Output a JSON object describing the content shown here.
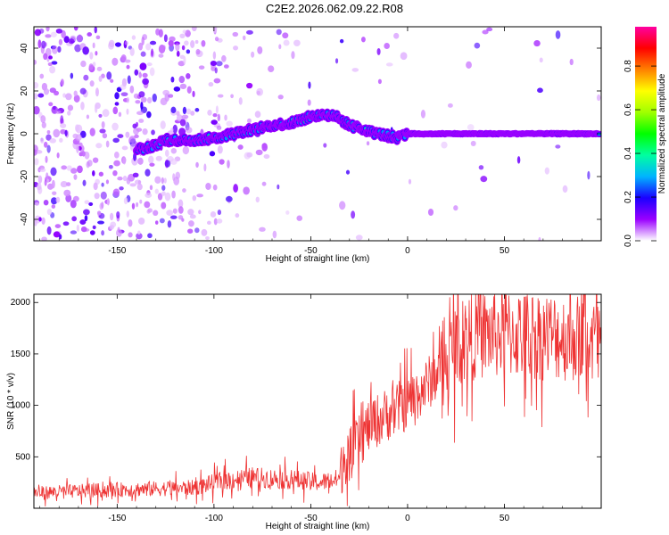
{
  "page_title": "C2E2.2026.062.09.22.R08",
  "chart_data": [
    {
      "type": "heatmap",
      "title": "C2E2.2026.062.09.22.R08",
      "xlabel": "Height of straight line (km)",
      "ylabel": "Frequency (Hz)",
      "xlim": [
        -193,
        100
      ],
      "ylim": [
        -50,
        50
      ],
      "x_ticks": [
        -150,
        -100,
        -50,
        0,
        50
      ],
      "y_ticks": [
        -40,
        -20,
        0,
        20,
        40
      ],
      "colorbar": {
        "label": "Normalized spectral amplitude",
        "range": [
          0,
          0.98
        ],
        "ticks": [
          0.0,
          0.2,
          0.4,
          0.6,
          0.8
        ],
        "stops": [
          "#ffffff",
          "#9a00ff",
          "#1a00ff",
          "#00b4ff",
          "#00ffa0",
          "#00ff00",
          "#a0ff00",
          "#ffff00",
          "#ff8000",
          "#ff0000",
          "#ff00a0"
        ]
      },
      "ridge": {
        "x": [
          -135,
          -125,
          -110,
          -100,
          -90,
          -80,
          -70,
          -60,
          -50,
          -42,
          -37,
          -30,
          -20,
          -10,
          -5,
          0,
          10,
          20,
          30,
          50,
          70,
          100
        ],
        "frequency": [
          -7,
          -3,
          -3,
          -2,
          0,
          2,
          4,
          5,
          8,
          9,
          8,
          4,
          1,
          -1,
          -2,
          0,
          0,
          0,
          0,
          0,
          0,
          0
        ]
      }
    },
    {
      "type": "line",
      "xlabel": "Height of straight line (km)",
      "ylabel": "SNR (10 * v/v)",
      "xlim": [
        -193,
        100
      ],
      "ylim": [
        0,
        2080
      ],
      "x_ticks": [
        -150,
        -100,
        -50,
        0,
        50
      ],
      "y_ticks": [
        500,
        1000,
        1500,
        2000
      ],
      "color": "#ee3333",
      "trend": {
        "x": [
          -193,
          -150,
          -110,
          -95,
          -80,
          -60,
          -45,
          -35,
          -33,
          -28,
          -20,
          -10,
          0,
          10,
          20,
          25,
          35,
          50,
          70,
          100
        ],
        "snr": [
          150,
          180,
          200,
          270,
          300,
          280,
          250,
          290,
          480,
          550,
          800,
          920,
          1020,
          1200,
          1420,
          1600,
          1690,
          1700,
          1680,
          1640
        ]
      }
    }
  ]
}
